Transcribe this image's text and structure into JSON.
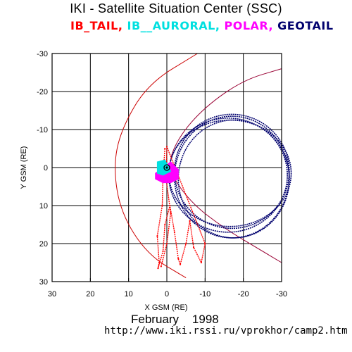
{
  "header": {
    "title": "IKI - Satellite Situation Center (SSC)"
  },
  "footer": {
    "date": "February    1998",
    "url": "http://www.iki.rssi.ru/vprokhor/camp2.htm"
  },
  "chart_data": {
    "type": "scatter",
    "title": "IKI - Satellite Situation Center (SSC)",
    "xlabel": "X GSM (RE)",
    "ylabel": "Y GSM (RE)",
    "xlim": [
      30,
      -30
    ],
    "ylim": [
      -30,
      30
    ],
    "x_ticks": [
      30,
      20,
      10,
      0,
      -10,
      -20,
      -30
    ],
    "y_ticks": [
      -30,
      -20,
      -10,
      0,
      10,
      20,
      30
    ],
    "grid": true,
    "legend": [
      {
        "name": "IB_TAIL",
        "color": "#ff0000"
      },
      {
        "name": "IB__AURORAL",
        "color": "#00e0e0"
      },
      {
        "name": "POLAR",
        "color": "#ff00ff"
      },
      {
        "name": "GEOTAIL",
        "color": "#00006e"
      }
    ],
    "series": [
      {
        "name": "GEOTAIL",
        "color": "#00006e",
        "orbits": [
          {
            "center": [
              -17,
              1
            ],
            "rx": 15,
            "ry": 15
          },
          {
            "center": [
              -16,
              2
            ],
            "rx": 15.5,
            "ry": 15
          },
          {
            "center": [
              -17,
              2.5
            ],
            "rx": 15,
            "ry": 16
          },
          {
            "center": [
              -16.5,
              1.5
            ],
            "rx": 16,
            "ry": 14
          },
          {
            "center": [
              -17.5,
              3
            ],
            "rx": 14.5,
            "ry": 15.5
          }
        ]
      },
      {
        "name": "IB_TAIL",
        "color": "#ff0000",
        "points": [
          [
            0.5,
            -5
          ],
          [
            1,
            2
          ],
          [
            1.2,
            10
          ],
          [
            2.5,
            18
          ],
          [
            2,
            25
          ],
          [
            2.3,
            26.5
          ],
          [
            1,
            22
          ],
          [
            0.5,
            15
          ],
          [
            -0.8,
            10
          ],
          [
            -2,
            17
          ],
          [
            -3,
            24
          ],
          [
            -3.5,
            25.5
          ],
          [
            -5,
            20
          ],
          [
            -6,
            14
          ],
          [
            -7,
            21
          ],
          [
            -9,
            25
          ],
          [
            -10,
            20
          ],
          [
            0,
            -5.5
          ],
          [
            0.2,
            3
          ],
          [
            -1,
            12
          ],
          [
            0,
            20
          ],
          [
            1.5,
            26
          ]
        ]
      },
      {
        "name": "POLAR",
        "color": "#ff00ff",
        "points": [
          [
            -1,
            -1.5
          ],
          [
            -3,
            0.5
          ],
          [
            -3,
            3
          ],
          [
            -1,
            4
          ],
          [
            1,
            4
          ],
          [
            3,
            3
          ],
          [
            3,
            1.5
          ]
        ]
      },
      {
        "name": "IB__AURORAL",
        "color": "#00e0e0",
        "points": [
          [
            0.5,
            -2
          ],
          [
            2.5,
            -1.5
          ],
          [
            2.5,
            1.5
          ],
          [
            1,
            2
          ],
          [
            -1,
            1
          ]
        ]
      }
    ],
    "boundaries": [
      {
        "name": "magnetopause",
        "color": "#cc0000",
        "points": [
          [
            -8,
            -30
          ],
          [
            5,
            -22
          ],
          [
            12,
            -10
          ],
          [
            14,
            0
          ],
          [
            12,
            12
          ],
          [
            5,
            23
          ],
          [
            -5,
            29
          ]
        ]
      },
      {
        "name": "bow-shock-curve",
        "color": "#990033",
        "points": [
          [
            -30,
            -26
          ],
          [
            -20,
            -23
          ],
          [
            -10,
            -16
          ],
          [
            -3,
            -8
          ],
          [
            0,
            0
          ],
          [
            -6,
            9
          ],
          [
            -15,
            16
          ],
          [
            -25,
            22
          ],
          [
            -30,
            25
          ]
        ]
      }
    ]
  }
}
